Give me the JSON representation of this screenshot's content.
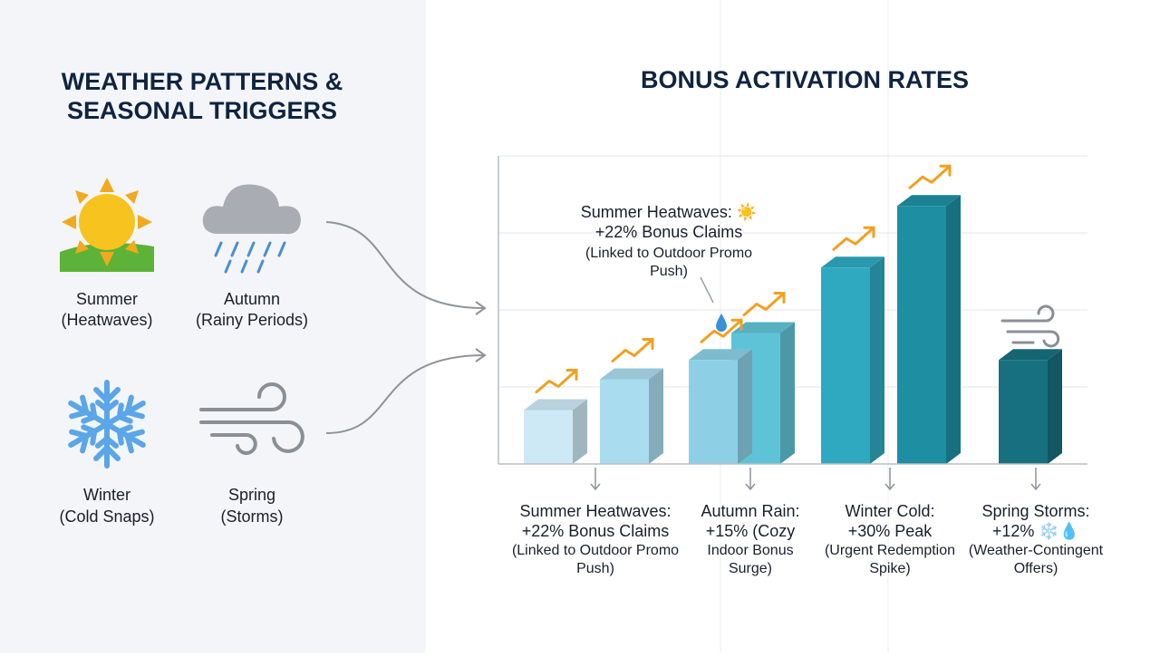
{
  "left": {
    "title": [
      "WEATHER PATTERNS &",
      "SEASONAL TRIGGERS"
    ],
    "seasons": [
      {
        "name": "Summer",
        "detail": "(Heatwaves)"
      },
      {
        "name": "Autumn",
        "detail": "(Rainy Periods)"
      },
      {
        "name": "Winter",
        "detail": "(Cold Snaps)"
      },
      {
        "name": "Spring",
        "detail": "(Storms)"
      }
    ]
  },
  "chart_data": {
    "type": "bar",
    "title": "BONUS ACTIVATION RATES",
    "values": [
      0.7,
      1.1,
      1.35,
      1.7,
      2.55,
      3.35,
      1.35
    ],
    "colors": [
      "#cde9f5",
      "#a9dcef",
      "#8dd0e6",
      "#5fc3d8",
      "#2fa9c0",
      "#1e8fa3",
      "#17707f"
    ],
    "ylim": [
      0,
      4
    ],
    "yticks": [
      1,
      2,
      3,
      4
    ],
    "grid": true,
    "annotation": [
      "Summer Heatwaves: ☀️",
      "+22% Bonus Claims",
      "(Linked to Outdoor Promo",
      "Push)"
    ],
    "captions": [
      [
        "Summer Heatwaves:",
        "+22% Bonus Claims",
        "(Linked to Outdoor Promo",
        "Push)"
      ],
      [
        "Autumn Rain:",
        "+15% (Cozy",
        "Indoor Bonus",
        "Surge)"
      ],
      [
        "Winter Cold:",
        "+30% Peak",
        "(Urgent Redemption",
        "Spike)"
      ],
      [
        "Spring Storms:",
        "+12% ❄️💧",
        "(Weather-Contingent",
        "Offers)"
      ]
    ]
  }
}
